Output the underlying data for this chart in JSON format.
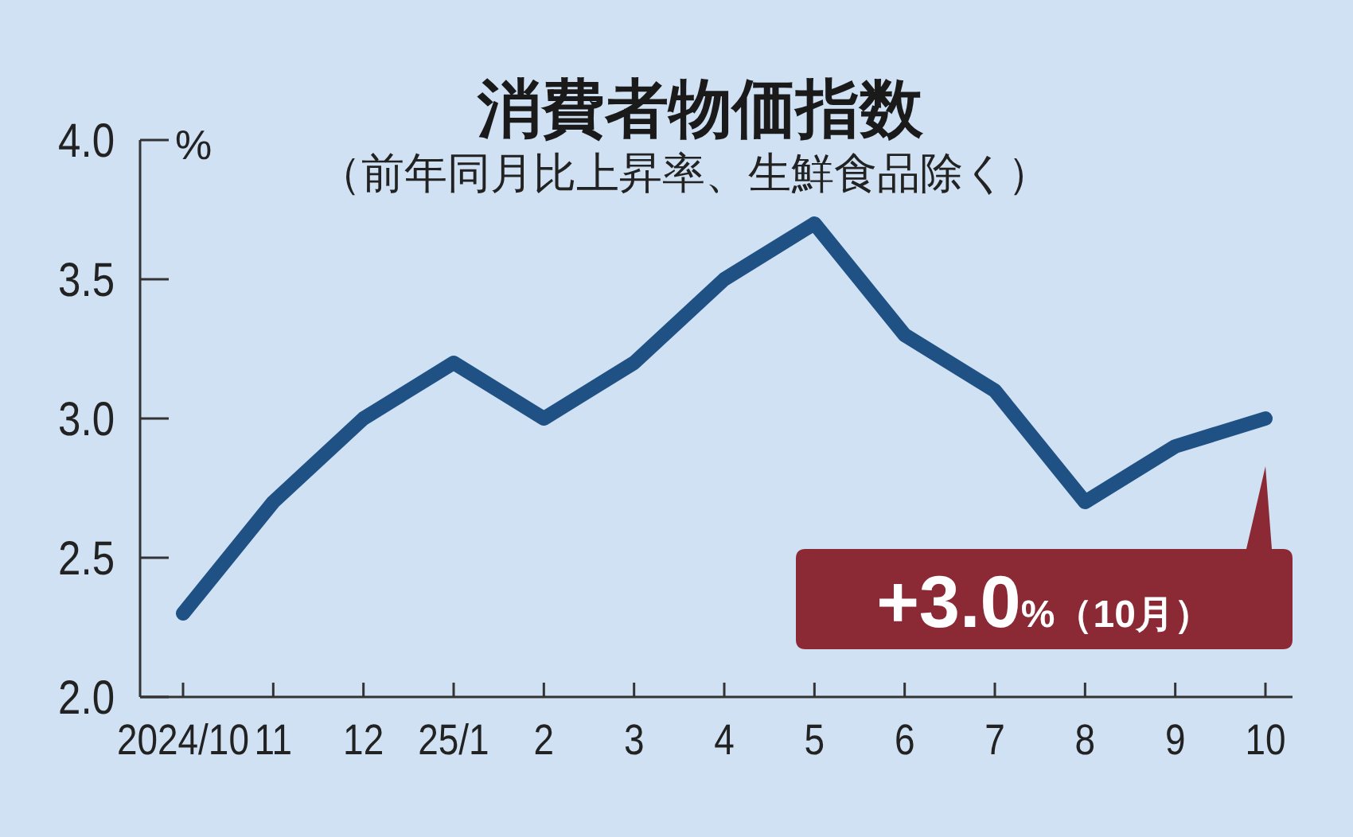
{
  "chart_data": {
    "type": "line",
    "title": "消費者物価指数",
    "subtitle": "（前年同月比上昇率、生鮮食品除く）",
    "ylabel": "%",
    "categories": [
      "2024/10",
      "11",
      "12",
      "25/1",
      "2",
      "3",
      "4",
      "5",
      "6",
      "7",
      "8",
      "9",
      "10"
    ],
    "series": [
      {
        "color": "#1f5185",
        "values": [
          2.3,
          2.7,
          3.0,
          3.2,
          3.0,
          3.2,
          3.5,
          3.7,
          3.3,
          3.1,
          2.7,
          2.9,
          3.0
        ]
      }
    ],
    "ylim": [
      2.0,
      4.0
    ],
    "yticks": [
      {
        "value": 2,
        "label": "2.0"
      },
      {
        "value": 2.5,
        "label": "2.5"
      },
      {
        "value": 3,
        "label": "3.0"
      },
      {
        "value": 3.5,
        "label": "3.5"
      },
      {
        "value": 4,
        "label": "4.0"
      }
    ],
    "grid": false,
    "marker": "none",
    "line_style": "solid",
    "annotations": [
      {
        "text": "+3.0%（10月）",
        "x": "10",
        "y": 3.0
      }
    ]
  }
}
